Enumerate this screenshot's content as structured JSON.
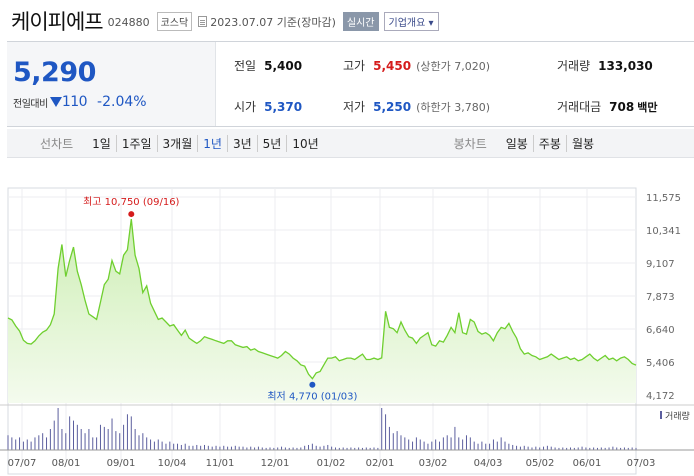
{
  "header": {
    "name": "케이피에프",
    "code": "024880",
    "market": "코스닥",
    "as_of": "2023.07.07 기준(장마감)",
    "realtime": "실시간",
    "company_info": "기업개요 ▾"
  },
  "quote": {
    "price": "5,290",
    "change_label": "전일대비",
    "change": "110",
    "change_rate": "-2.04%",
    "prev_close_label": "전일",
    "prev_close": "5,400",
    "high_label": "고가",
    "high": "5,450",
    "upper_limit": "(상한가 7,020)",
    "volume_label": "거래량",
    "volume": "133,030",
    "open_label": "시가",
    "open": "5,370",
    "low_label": "저가",
    "low": "5,250",
    "lower_limit": "(하한가 3,780)",
    "amount_label": "거래대금",
    "amount": "708",
    "amount_unit": "백만"
  },
  "period_bar": {
    "line_title": "선차트",
    "line_periods": [
      "1일",
      "1주일",
      "3개월",
      "1년",
      "3년",
      "5년",
      "10년"
    ],
    "active": "1년",
    "candle_title": "봉차트",
    "candle_periods": [
      "일봉",
      "주봉",
      "월봉"
    ]
  },
  "colors": {
    "up": "#d51c1c",
    "down": "#1f57c3",
    "line": "#6fcf2f",
    "area": "#e3f6d3"
  },
  "chart_data": {
    "type": "area",
    "y_ticks": [
      "11,575",
      "10,341",
      "9,107",
      "7,873",
      "6,640",
      "5,406",
      "4,172"
    ],
    "ylim": [
      4172,
      11575
    ],
    "x_ticks": [
      "07/07",
      "08/01",
      "09/01",
      "10/04",
      "11/01",
      "12/01",
      "01/02",
      "02/01",
      "03/02",
      "04/03",
      "05/02",
      "06/01",
      "07/03"
    ],
    "high_annotation": "최고 10,750 (09/16)",
    "low_annotation": "최저 4,770 (01/03)",
    "volume_label": "거래량",
    "prices": [
      7050,
      6980,
      6750,
      6560,
      6220,
      6100,
      6080,
      6200,
      6380,
      6520,
      6600,
      6800,
      7200,
      8900,
      9800,
      8600,
      9200,
      9700,
      8800,
      8300,
      7700,
      7200,
      7100,
      7000,
      7650,
      8300,
      8500,
      9200,
      8800,
      8700,
      9400,
      9600,
      10750,
      9400,
      8900,
      8000,
      8250,
      7600,
      7300,
      7000,
      7050,
      6900,
      6750,
      6800,
      6600,
      6400,
      6600,
      6300,
      6200,
      6100,
      6200,
      6350,
      6300,
      6250,
      6200,
      6150,
      6100,
      6200,
      6200,
      6050,
      6000,
      5950,
      5980,
      5850,
      5900,
      5800,
      5750,
      5700,
      5650,
      5600,
      5550,
      5650,
      5800,
      5700,
      5550,
      5450,
      5300,
      5250,
      4950,
      4780,
      5000,
      5050,
      5300,
      5550,
      5550,
      5600,
      5450,
      5500,
      5550,
      5550,
      5500,
      5600,
      5700,
      5500,
      5500,
      5550,
      5500,
      5560,
      7300,
      6700,
      6650,
      6500,
      6900,
      6600,
      6350,
      6300,
      6100,
      6300,
      6400,
      6500,
      6050,
      6000,
      6200,
      6150,
      6400,
      6700,
      6500,
      7250,
      6500,
      6450,
      7000,
      6900,
      6550,
      6450,
      6500,
      6400,
      6200,
      6500,
      6700,
      6650,
      6850,
      6550,
      6300,
      5900,
      5700,
      5750,
      5650,
      5600,
      5500,
      5550,
      5600,
      5700,
      5600,
      5500,
      5550,
      5600,
      5500,
      5550,
      5450,
      5500,
      5600,
      5700,
      5550,
      5450,
      5550,
      5650,
      5500,
      5550,
      5450,
      5550,
      5600,
      5500,
      5350,
      5290
    ],
    "volumes": [
      0.35,
      0.3,
      0.25,
      0.3,
      0.2,
      0.25,
      0.2,
      0.3,
      0.35,
      0.4,
      0.3,
      0.5,
      0.7,
      1.0,
      0.5,
      0.4,
      0.8,
      0.7,
      0.6,
      0.5,
      0.4,
      0.5,
      0.3,
      0.3,
      0.6,
      0.55,
      0.5,
      0.75,
      0.45,
      0.4,
      0.6,
      0.85,
      0.8,
      0.5,
      0.35,
      0.4,
      0.3,
      0.25,
      0.2,
      0.25,
      0.2,
      0.15,
      0.2,
      0.15,
      0.15,
      0.12,
      0.15,
      0.1,
      0.1,
      0.12,
      0.1,
      0.12,
      0.1,
      0.08,
      0.1,
      0.08,
      0.1,
      0.08,
      0.08,
      0.1,
      0.08,
      0.08,
      0.06,
      0.08,
      0.06,
      0.08,
      0.06,
      0.05,
      0.06,
      0.05,
      0.06,
      0.08,
      0.06,
      0.05,
      0.06,
      0.05,
      0.06,
      0.1,
      0.12,
      0.15,
      0.1,
      0.08,
      0.1,
      0.12,
      0.08,
      0.06,
      0.05,
      0.06,
      0.05,
      0.06,
      0.05,
      0.06,
      0.05,
      0.06,
      0.05,
      0.06,
      0.05,
      1.0,
      0.85,
      0.55,
      0.4,
      0.45,
      0.35,
      0.3,
      0.25,
      0.2,
      0.3,
      0.25,
      0.2,
      0.15,
      0.2,
      0.25,
      0.2,
      0.3,
      0.35,
      0.3,
      0.55,
      0.3,
      0.25,
      0.35,
      0.3,
      0.2,
      0.15,
      0.2,
      0.15,
      0.15,
      0.25,
      0.2,
      0.3,
      0.2,
      0.15,
      0.12,
      0.1,
      0.08,
      0.1,
      0.08,
      0.06,
      0.08,
      0.06,
      0.08,
      0.1,
      0.08,
      0.06,
      0.05,
      0.06,
      0.05,
      0.06,
      0.05,
      0.06,
      0.08,
      0.06,
      0.05,
      0.06,
      0.05,
      0.06,
      0.05,
      0.06,
      0.08,
      0.06,
      0.05,
      0.06,
      0.05,
      0.06,
      0.05
    ]
  }
}
